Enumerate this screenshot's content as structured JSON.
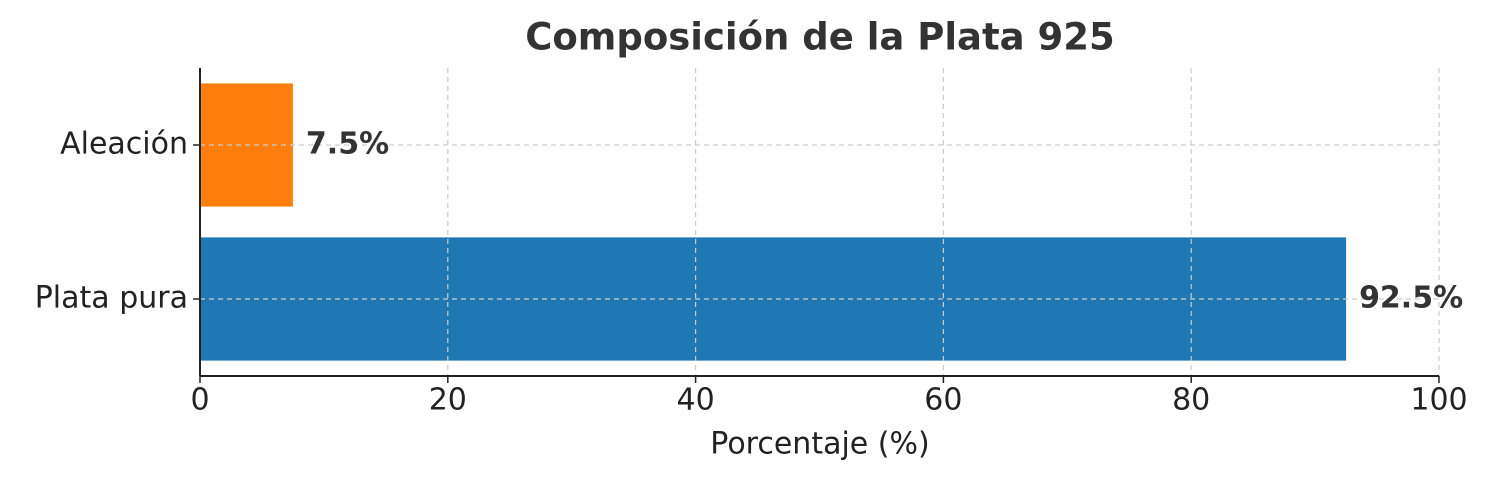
{
  "chart_data": {
    "type": "barh",
    "title": "Composición de la Plata 925",
    "x_label": "Porcentaje (%)",
    "categories": [
      "Plata pura",
      "Aleación"
    ],
    "values": [
      92.5,
      7.5
    ],
    "value_labels": [
      "92.5%",
      "7.5%"
    ],
    "colors": [
      "#1f77b4",
      "#ff7f0e"
    ],
    "xlim": [
      0,
      100
    ],
    "xticks": [
      0,
      20,
      40,
      60,
      80,
      100
    ],
    "grid": true
  }
}
